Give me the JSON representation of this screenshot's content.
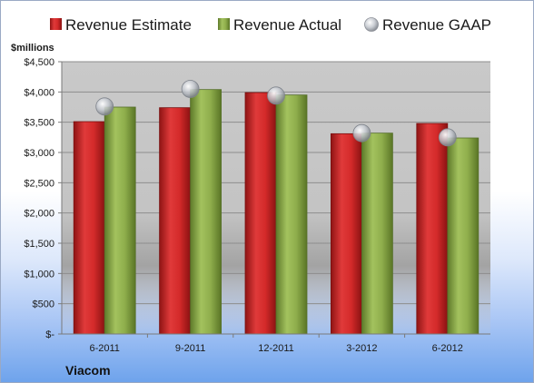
{
  "chart_data": {
    "type": "bar",
    "categories": [
      "6-2011",
      "9-2011",
      "12-2011",
      "3-2012",
      "6-2012"
    ],
    "series": [
      {
        "name": "Revenue Estimate",
        "values": [
          3510,
          3740,
          3990,
          3310,
          3480
        ],
        "color": "#d42a2a"
      },
      {
        "name": "Revenue Actual",
        "values": [
          3750,
          4040,
          3950,
          3320,
          3240
        ],
        "color": "#8fae4c"
      }
    ],
    "overlay": {
      "name": "Revenue GAAP",
      "type": "scatter",
      "values": [
        3760,
        4050,
        3940,
        3320,
        3250
      ],
      "color": "#c8ccd2"
    },
    "ylabel": "$millions",
    "ylim": [
      0,
      4500
    ],
    "yticks": [
      0,
      500,
      1000,
      1500,
      2000,
      2500,
      3000,
      3500,
      4000,
      4500
    ],
    "ytick_labels": [
      "$-",
      "$500",
      "$1,000",
      "$1,500",
      "$2,000",
      "$2,500",
      "$3,000",
      "$3,500",
      "$4,000",
      "$4,500"
    ],
    "legend_position": "top",
    "grid": true,
    "footer": "Viacom"
  }
}
